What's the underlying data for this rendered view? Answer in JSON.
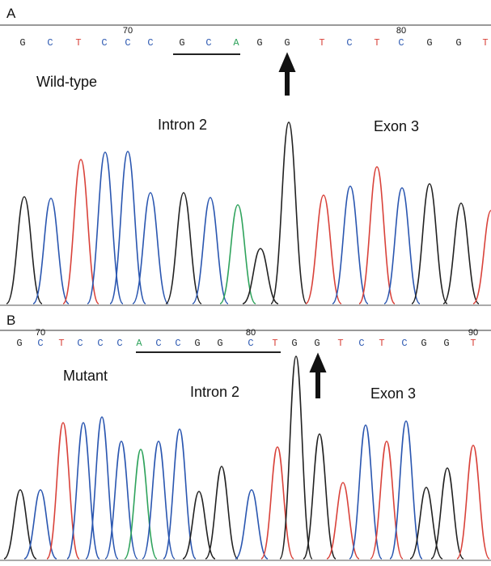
{
  "base_colors": {
    "A": "#2fa35c",
    "C": "#2a56b0",
    "G": "#222222",
    "T": "#d9423a"
  },
  "panels": [
    {
      "label": "A",
      "bases": [
        "G",
        "C",
        "T",
        "C",
        "C",
        "C",
        "G",
        "C",
        "A",
        "G",
        "G",
        "T",
        "C",
        "T",
        "C",
        "G",
        "G",
        "T"
      ],
      "position_labels": [
        "70",
        "80"
      ],
      "genotype": "Wild-type",
      "region_left": "Intron 2",
      "region_right": "Exon 3"
    },
    {
      "label": "B",
      "bases": [
        "G",
        "C",
        "T",
        "C",
        "C",
        "C",
        "A",
        "C",
        "C",
        "G",
        "G",
        "C",
        "T",
        "G",
        "G",
        "T",
        "C",
        "T",
        "C",
        "G",
        "G",
        "T"
      ],
      "position_labels": [
        "70",
        "80",
        "90"
      ],
      "genotype": "Mutant",
      "region_left": "Intron 2",
      "region_right": "Exon 3"
    }
  ]
}
